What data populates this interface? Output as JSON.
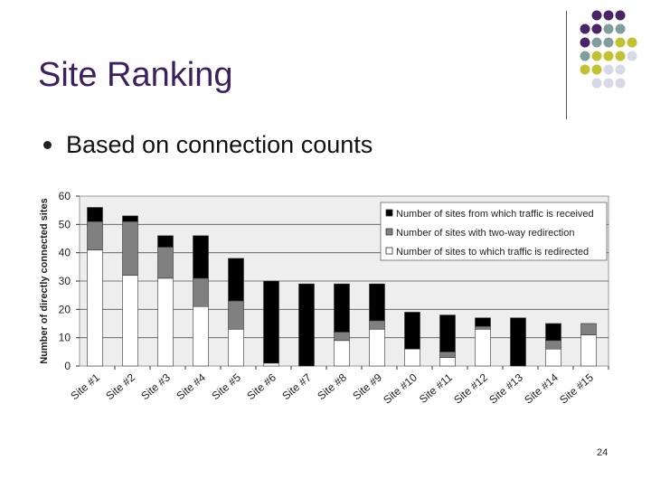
{
  "slide": {
    "title": "Site Ranking",
    "bullet": "Based on connection counts",
    "page_number": "24"
  },
  "colors": {
    "title": "#3d1e5e",
    "received": "#000000",
    "two_way": "#808080",
    "redirected": "#ffffff",
    "plot_bg": "#eeeeee",
    "dot_purple": "#4a2466",
    "dot_teal": "#7f9e9c",
    "dot_olive": "#c2c230",
    "dot_lavender": "#d8d8e6"
  },
  "chart_data": {
    "type": "bar",
    "stacked": true,
    "categories": [
      "Site #1",
      "Site #2",
      "Site #3",
      "Site #4",
      "Site #5",
      "Site #6",
      "Site #7",
      "Site #8",
      "Site #9",
      "Site #10",
      "Site #11",
      "Site #12",
      "Site #13",
      "Site #14",
      "Site #15"
    ],
    "series": [
      {
        "name": "Number of sites to which traffic is redirected",
        "values": [
          41,
          32,
          31,
          21,
          13,
          1,
          0,
          9,
          13,
          6,
          3,
          13,
          0,
          6,
          11
        ]
      },
      {
        "name": "Number of sites with two-way redirection",
        "values": [
          10,
          19,
          11,
          10,
          10,
          0,
          0,
          3,
          3,
          0,
          2,
          1,
          0,
          3,
          4
        ]
      },
      {
        "name": "Number of sites from which traffic is received",
        "values": [
          5,
          2,
          4,
          15,
          15,
          29,
          29,
          17,
          13,
          13,
          13,
          3,
          17,
          6,
          0
        ]
      }
    ],
    "ylabel": "Number of directly connected sites",
    "ylim": [
      0,
      60
    ],
    "yticks": [
      "0",
      "10",
      "20",
      "30",
      "40",
      "50",
      "60"
    ],
    "grid": true,
    "legend": "top-right"
  }
}
